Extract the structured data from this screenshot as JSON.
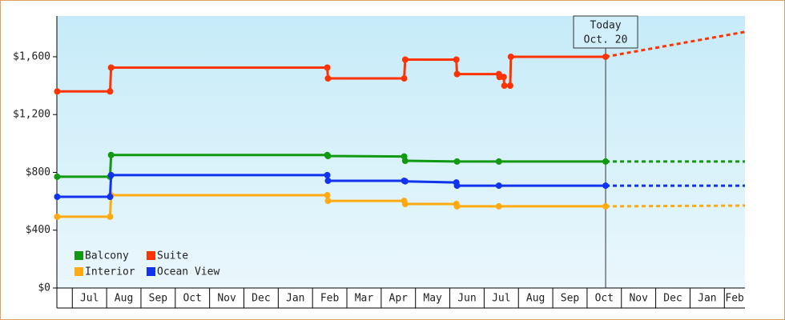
{
  "chart_data": {
    "type": "line",
    "xlim": [
      -0.45,
      19.6
    ],
    "ylim": [
      0,
      1882
    ],
    "yticks": [
      {
        "value": 0,
        "label": "$0"
      },
      {
        "value": 400,
        "label": "$400"
      },
      {
        "value": 800,
        "label": "$800"
      },
      {
        "value": 1200,
        "label": "$1,200"
      },
      {
        "value": 1600,
        "label": "$1,600"
      }
    ],
    "xticks": [
      {
        "value": 0,
        "label": "Jul"
      },
      {
        "value": 1,
        "label": "Aug"
      },
      {
        "value": 2,
        "label": "Sep"
      },
      {
        "value": 3,
        "label": "Oct"
      },
      {
        "value": 4,
        "label": "Nov"
      },
      {
        "value": 5,
        "label": "Dec"
      },
      {
        "value": 6,
        "label": "Jan"
      },
      {
        "value": 7,
        "label": "Feb"
      },
      {
        "value": 8,
        "label": "Mar"
      },
      {
        "value": 9,
        "label": "Apr"
      },
      {
        "value": 10,
        "label": "May"
      },
      {
        "value": 11,
        "label": "Jun"
      },
      {
        "value": 12,
        "label": "Jul"
      },
      {
        "value": 13,
        "label": "Aug"
      },
      {
        "value": 14,
        "label": "Sep"
      },
      {
        "value": 15,
        "label": "Oct"
      },
      {
        "value": 16,
        "label": "Nov"
      },
      {
        "value": 17,
        "label": "Dec"
      },
      {
        "value": 18,
        "label": "Jan"
      },
      {
        "value": 19,
        "label": "Feb"
      }
    ],
    "today": {
      "x": 15.54,
      "label_lines": [
        "Today",
        "Oct. 20"
      ]
    },
    "series": [
      {
        "name": "Balcony",
        "color": "#119911",
        "x": [
          -0.44,
          1.1,
          1.13,
          7.43,
          7.45,
          9.67,
          9.7,
          11.21,
          12.43,
          15.54
        ],
        "values": [
          770,
          770,
          920,
          920,
          913,
          910,
          880,
          875,
          875,
          875
        ],
        "forecast": {
          "x": [
            15.54,
            19.6
          ],
          "values": [
            875,
            875
          ]
        }
      },
      {
        "name": "Suite",
        "color": "#ff3300",
        "x": [
          -0.44,
          1.1,
          1.13,
          7.43,
          7.45,
          9.67,
          9.7,
          11.19,
          11.21,
          12.43,
          12.45,
          12.57,
          12.59,
          12.76,
          12.78,
          15.54
        ],
        "values": [
          1360,
          1360,
          1525,
          1525,
          1450,
          1450,
          1580,
          1580,
          1480,
          1480,
          1460,
          1460,
          1400,
          1400,
          1600,
          1600
        ],
        "forecast": {
          "x": [
            15.54,
            19.6
          ],
          "values": [
            1600,
            1772
          ]
        }
      },
      {
        "name": "Interior",
        "color": "#ffaa11",
        "x": [
          -0.44,
          1.1,
          1.13,
          7.43,
          7.45,
          9.67,
          9.7,
          11.19,
          11.21,
          12.43,
          15.54
        ],
        "values": [
          493,
          493,
          642,
          642,
          603,
          603,
          581,
          581,
          565,
          565,
          565
        ],
        "forecast": {
          "x": [
            15.54,
            19.6
          ],
          "values": [
            565,
            570
          ]
        }
      },
      {
        "name": "Ocean View",
        "color": "#1133ee",
        "x": [
          -0.44,
          1.1,
          1.13,
          7.43,
          7.45,
          9.67,
          9.7,
          11.19,
          11.21,
          12.43,
          15.54
        ],
        "values": [
          631,
          631,
          781,
          781,
          742,
          742,
          738,
          730,
          708,
          708,
          708
        ],
        "forecast": {
          "x": [
            15.54,
            19.6
          ],
          "values": [
            708,
            708
          ]
        }
      }
    ]
  }
}
